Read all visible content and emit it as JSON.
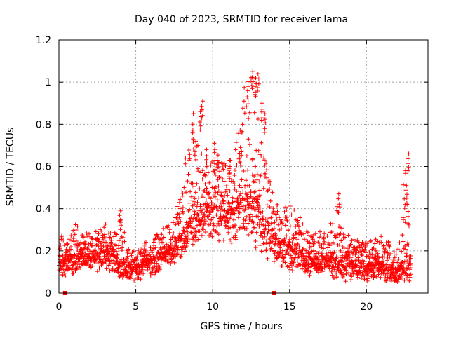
{
  "chart_data": {
    "type": "scatter",
    "title": "Day 040 of 2023, SRMTID for receiver lama",
    "xlabel": "GPS time / hours",
    "ylabel": "SRMTID / TECUs",
    "xlim": [
      0,
      24
    ],
    "ylim": [
      0,
      1.2
    ],
    "x_ticks": [
      0,
      5,
      10,
      15,
      20
    ],
    "x_tick_labels": [
      "0",
      "5",
      "10",
      "15",
      "20"
    ],
    "y_ticks": [
      0,
      0.2,
      0.4,
      0.6,
      0.8,
      1.0,
      1.2
    ],
    "y_tick_labels": [
      "0",
      "0.2",
      "0.4",
      "0.6",
      "0.8",
      "1",
      "1.2"
    ],
    "grid": true,
    "marker": "+",
    "marker_color": "#ff0000",
    "gap_markers": {
      "marker": "square",
      "x": [
        0.4,
        14.0
      ],
      "y": [
        0,
        0
      ]
    },
    "envelope": {
      "description": "approximate lower/median/upper profile of the dense point cloud",
      "x": [
        0,
        0.5,
        1,
        1.5,
        2,
        2.5,
        3,
        3.5,
        4,
        4.5,
        5,
        5.5,
        6,
        6.5,
        7,
        7.5,
        8,
        8.5,
        9,
        9.5,
        10,
        10.5,
        11,
        11.5,
        12,
        12.5,
        13,
        13.5,
        14,
        14.5,
        15,
        15.5,
        16,
        16.5,
        17,
        17.5,
        18,
        18.5,
        19,
        19.5,
        20,
        20.5,
        21,
        21.5,
        22,
        22.5,
        22.9
      ],
      "low": [
        0.06,
        0.07,
        0.09,
        0.1,
        0.1,
        0.09,
        0.1,
        0.09,
        0.07,
        0.06,
        0.05,
        0.07,
        0.08,
        0.09,
        0.12,
        0.14,
        0.17,
        0.2,
        0.22,
        0.24,
        0.25,
        0.24,
        0.22,
        0.24,
        0.24,
        0.22,
        0.2,
        0.16,
        0.14,
        0.12,
        0.1,
        0.09,
        0.08,
        0.07,
        0.08,
        0.07,
        0.06,
        0.05,
        0.05,
        0.06,
        0.05,
        0.06,
        0.05,
        0.05,
        0.04,
        0.05,
        0.05
      ],
      "mid": [
        0.14,
        0.16,
        0.18,
        0.18,
        0.17,
        0.18,
        0.2,
        0.18,
        0.15,
        0.13,
        0.12,
        0.14,
        0.16,
        0.17,
        0.2,
        0.23,
        0.28,
        0.33,
        0.38,
        0.4,
        0.42,
        0.4,
        0.38,
        0.42,
        0.45,
        0.46,
        0.42,
        0.33,
        0.26,
        0.24,
        0.22,
        0.2,
        0.18,
        0.16,
        0.17,
        0.16,
        0.15,
        0.14,
        0.14,
        0.14,
        0.13,
        0.14,
        0.13,
        0.12,
        0.11,
        0.15,
        0.16
      ],
      "high": [
        0.26,
        0.3,
        0.34,
        0.3,
        0.28,
        0.3,
        0.33,
        0.31,
        0.39,
        0.24,
        0.2,
        0.24,
        0.27,
        0.29,
        0.33,
        0.36,
        0.5,
        0.8,
        0.91,
        0.56,
        0.7,
        0.66,
        0.6,
        0.7,
        0.98,
        1.05,
        0.9,
        0.6,
        0.46,
        0.4,
        0.42,
        0.38,
        0.34,
        0.3,
        0.3,
        0.27,
        0.47,
        0.3,
        0.26,
        0.25,
        0.24,
        0.26,
        0.27,
        0.24,
        0.22,
        0.66,
        0.2
      ]
    },
    "spikes": {
      "x": [
        8.7,
        8.9,
        9.2,
        9.35,
        9.6,
        10.1,
        10.4,
        11.1,
        11.8,
        12.3,
        12.6,
        12.8,
        12.95,
        13.2,
        13.4,
        4.0,
        18.2,
        22.6,
        22.75
      ],
      "y": [
        0.8,
        0.72,
        0.86,
        0.91,
        0.68,
        0.71,
        0.62,
        0.63,
        0.69,
        0.98,
        1.05,
        1.02,
        1.04,
        0.9,
        0.85,
        0.39,
        0.47,
        0.51,
        0.66
      ]
    },
    "n_points": 2400
  }
}
